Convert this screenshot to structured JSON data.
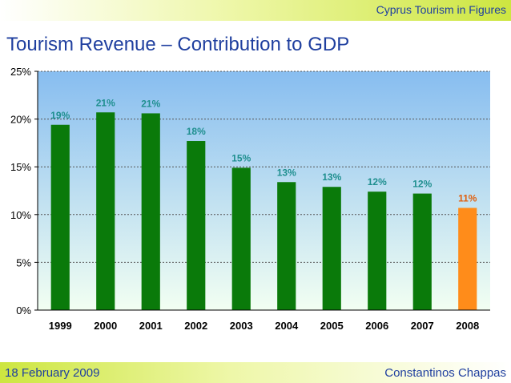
{
  "header": {
    "right_text": "Cyprus Tourism in Figures"
  },
  "slide": {
    "title": "Tourism Revenue – Contribution to GDP"
  },
  "footer": {
    "date": "18 February 2009",
    "author": "Constantinos Chappas"
  },
  "chart_data": {
    "type": "bar",
    "title": "",
    "xlabel": "",
    "ylabel": "",
    "categories": [
      "1999",
      "2000",
      "2001",
      "2002",
      "2003",
      "2004",
      "2005",
      "2006",
      "2007",
      "2008"
    ],
    "values": [
      19.4,
      20.7,
      20.6,
      17.7,
      14.9,
      13.4,
      12.9,
      12.4,
      12.2,
      10.7
    ],
    "data_labels": [
      "19%",
      "21%",
      "21%",
      "18%",
      "15%",
      "13%",
      "13%",
      "12%",
      "12%",
      "11%"
    ],
    "ylim": [
      0,
      25
    ],
    "yticks": [
      0,
      5,
      10,
      15,
      20,
      25
    ],
    "ytick_labels": [
      "0%",
      "5%",
      "10%",
      "15%",
      "20%",
      "25%"
    ],
    "grid": true,
    "colors": {
      "bar": "#0a7a0a",
      "highlight_bar": "#ff8c1a",
      "label": "#1f8f8f",
      "highlight_label": "#e06010",
      "plot_top": "#87bdf0",
      "plot_bottom": "#f2fff2"
    },
    "highlight_index": 9
  }
}
